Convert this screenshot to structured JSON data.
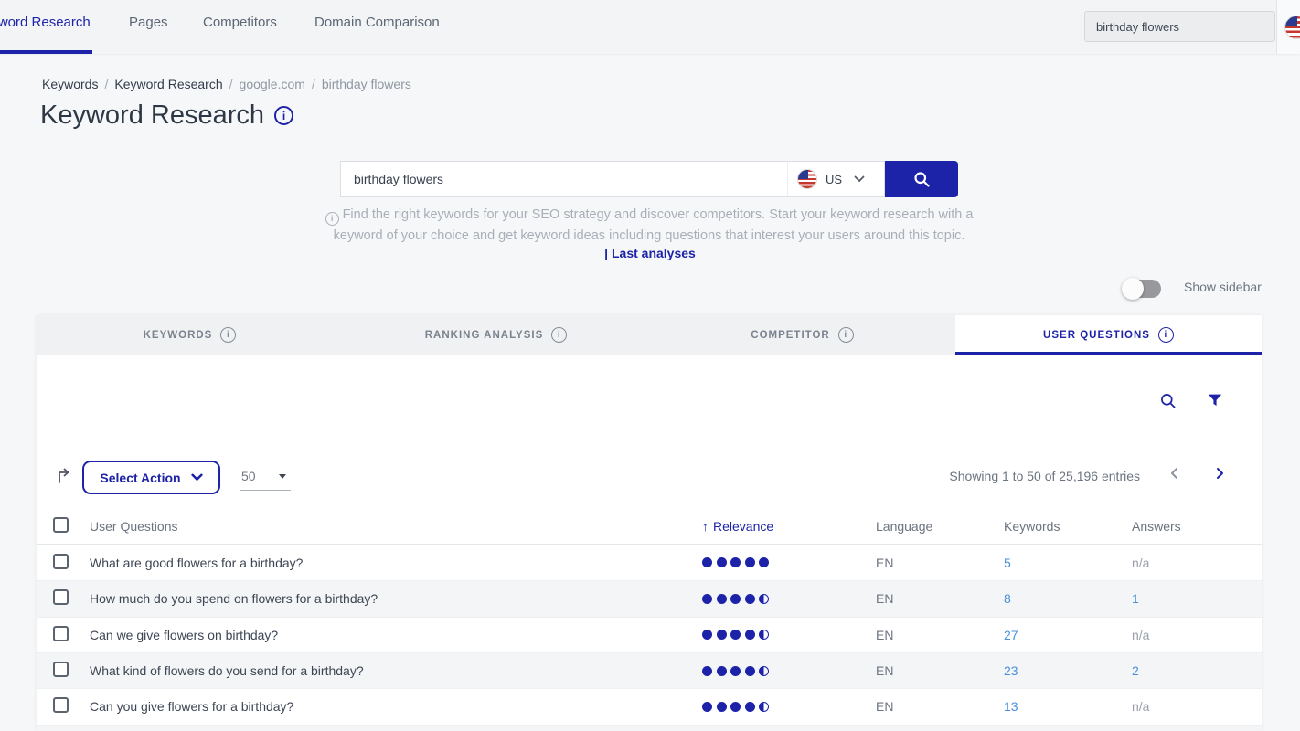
{
  "colors": {
    "primary": "#1d23a8",
    "link_blue": "#4a90d9"
  },
  "top_nav": {
    "items": [
      {
        "label": "Keyword Research",
        "active": true
      },
      {
        "label": "Pages",
        "active": false
      },
      {
        "label": "Competitors",
        "active": false
      },
      {
        "label": "Domain Comparison",
        "active": false
      }
    ],
    "search": {
      "value": "birthday flowers",
      "flag": "us-flag-icon"
    }
  },
  "breadcrumb": {
    "separator": "/",
    "items": [
      "Keywords",
      "Keyword Research",
      "google.com",
      "birthday flowers"
    ]
  },
  "page": {
    "title": "Keyword Research"
  },
  "search_panel": {
    "query": "birthday flowers",
    "country": "US",
    "description": "Find the right keywords for your SEO strategy and discover competitors. Start your keyword research with a keyword of your choice and get keyword ideas including questions that interest your users around this topic.",
    "last_analyses": "| Last analyses"
  },
  "sidebar_toggle": {
    "label": "Show sidebar",
    "on": false
  },
  "tabs": [
    {
      "label": "KEYWORDS",
      "active": false
    },
    {
      "label": "RANKING ANALYSIS",
      "active": false
    },
    {
      "label": "COMPETITOR",
      "active": false
    },
    {
      "label": "USER QUESTIONS",
      "active": true
    }
  ],
  "toolbar": {
    "select_action": "Select Action",
    "page_size": "50",
    "showing": "Showing 1 to 50 of 25,196 entries",
    "prev_enabled": false,
    "next_enabled": true
  },
  "table": {
    "columns": [
      "User Questions",
      "Relevance",
      "Language",
      "Keywords",
      "Answers"
    ],
    "sort_arrow": "↑",
    "sort": {
      "column": "Relevance",
      "direction": "asc"
    },
    "rows": [
      {
        "question": "What are good flowers for a birthday?",
        "relevance": 5,
        "language": "EN",
        "keywords": "5",
        "answers": "n/a"
      },
      {
        "question": "How much do you spend on flowers for a birthday?",
        "relevance": 4.5,
        "language": "EN",
        "keywords": "8",
        "answers": "1"
      },
      {
        "question": "Can we give flowers on birthday?",
        "relevance": 4.5,
        "language": "EN",
        "keywords": "27",
        "answers": "n/a"
      },
      {
        "question": "What kind of flowers do you send for a birthday?",
        "relevance": 4.5,
        "language": "EN",
        "keywords": "23",
        "answers": "2"
      },
      {
        "question": "Can you give flowers for a birthday?",
        "relevance": 4.5,
        "language": "EN",
        "keywords": "13",
        "answers": "n/a"
      }
    ]
  }
}
